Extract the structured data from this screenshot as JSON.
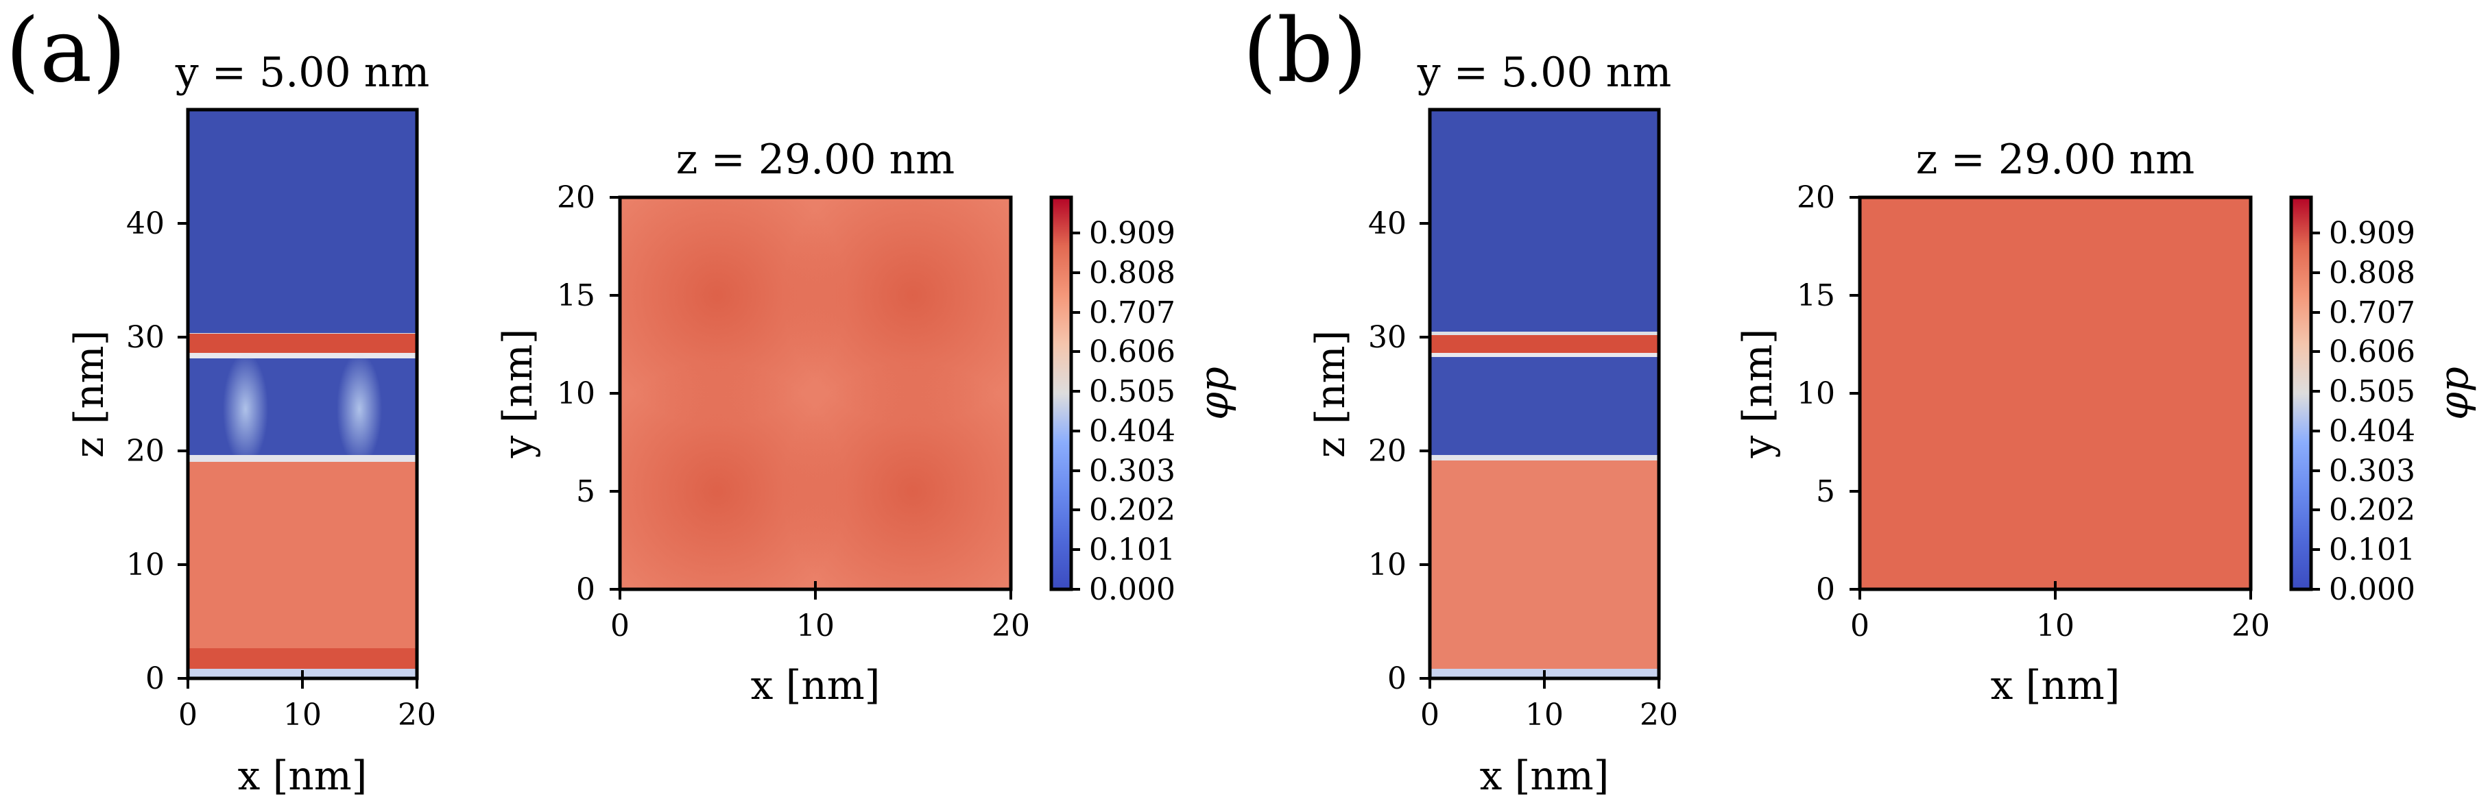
{
  "panel_labels": [
    "(a)",
    "(b)"
  ],
  "colors": {
    "colormap": "coolwarm",
    "low": "#3b4cc0",
    "mid": "#dddddd",
    "high": "#b40426"
  },
  "chart_data": [
    {
      "type": "heatmap",
      "panel": "(a)",
      "title": "y = 5.00 nm",
      "xlabel": "x [nm]",
      "ylabel": "z [nm]",
      "xlim": [
        0,
        20
      ],
      "ylim": [
        0,
        50
      ],
      "xticks": [
        0,
        10,
        20
      ],
      "yticks": [
        0,
        10,
        20,
        30,
        40
      ],
      "profile_z": [
        {
          "z": [
            0,
            0.6
          ],
          "phi": 0.05
        },
        {
          "z": [
            0.6,
            1.8
          ],
          "phi": 0.9
        },
        {
          "z": [
            1.8,
            19
          ],
          "phi": 0.8
        },
        {
          "z": [
            19,
            28.3
          ],
          "phi": 0.05,
          "modulation": "vertical columns at x≈5 and x≈15 nm, φ≈0.35"
        },
        {
          "z": [
            28.3,
            30.2
          ],
          "phi": 0.92
        },
        {
          "z": [
            30.2,
            50
          ],
          "phi": 0.03
        }
      ]
    },
    {
      "type": "heatmap",
      "panel": "(a)",
      "title": "z = 29.00 nm",
      "xlabel": "x [nm]",
      "ylabel": "y [nm]",
      "xlim": [
        0,
        20
      ],
      "ylim": [
        0,
        20
      ],
      "xticks": [
        0,
        10,
        20
      ],
      "yticks": [
        0,
        5,
        10,
        15,
        20
      ],
      "base_phi": 0.8,
      "maxima": [
        {
          "x": 5,
          "y": 5,
          "phi": 0.88
        },
        {
          "x": 15,
          "y": 5,
          "phi": 0.88
        },
        {
          "x": 5,
          "y": 15,
          "phi": 0.88
        },
        {
          "x": 15,
          "y": 15,
          "phi": 0.88
        }
      ],
      "colorbar": {
        "label": "φp",
        "range": [
          0,
          1
        ],
        "ticks": [
          "0.000",
          "0.101",
          "0.202",
          "0.303",
          "0.404",
          "0.505",
          "0.606",
          "0.707",
          "0.808",
          "0.909"
        ]
      }
    },
    {
      "type": "heatmap",
      "panel": "(b)",
      "title": "y = 5.00 nm",
      "xlabel": "x [nm]",
      "ylabel": "z [nm]",
      "xlim": [
        0,
        20
      ],
      "ylim": [
        0,
        50
      ],
      "xticks": [
        0,
        10,
        20
      ],
      "yticks": [
        0,
        10,
        20,
        30,
        40
      ],
      "profile_z": [
        {
          "z": [
            0,
            0.6
          ],
          "phi": 0.05
        },
        {
          "z": [
            0.6,
            19
          ],
          "phi": 0.8
        },
        {
          "z": [
            19,
            28.3
          ],
          "phi": 0.05
        },
        {
          "z": [
            28.3,
            30.2
          ],
          "phi": 0.92
        },
        {
          "z": [
            30.2,
            50
          ],
          "phi": 0.03
        }
      ]
    },
    {
      "type": "heatmap",
      "panel": "(b)",
      "title": "z = 29.00 nm",
      "xlabel": "x [nm]",
      "ylabel": "y [nm]",
      "xlim": [
        0,
        20
      ],
      "ylim": [
        0,
        20
      ],
      "xticks": [
        0,
        10,
        20
      ],
      "yticks": [
        0,
        5,
        10,
        15,
        20
      ],
      "base_phi": 0.85,
      "colorbar": {
        "label": "φp",
        "range": [
          0,
          1
        ],
        "ticks": [
          "0.000",
          "0.101",
          "0.202",
          "0.303",
          "0.404",
          "0.505",
          "0.606",
          "0.707",
          "0.808",
          "0.909"
        ]
      }
    }
  ]
}
